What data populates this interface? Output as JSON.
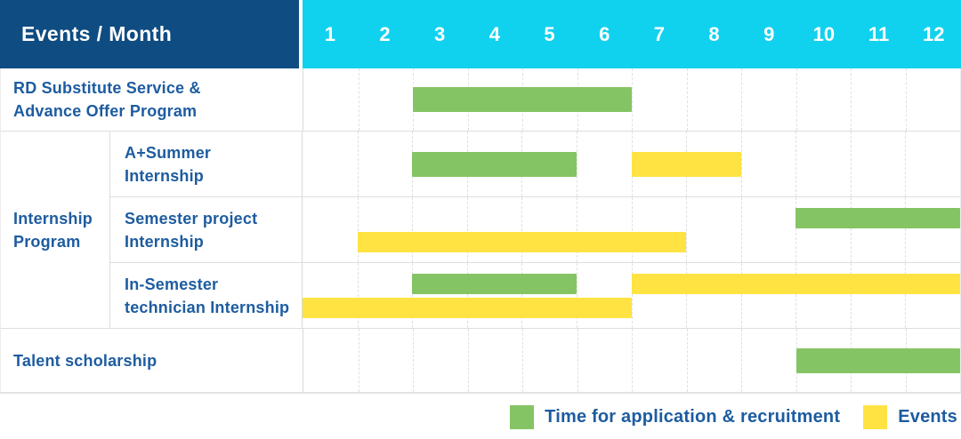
{
  "header": {
    "title": "Events / Month"
  },
  "months": [
    "1",
    "2",
    "3",
    "4",
    "5",
    "6",
    "7",
    "8",
    "9",
    "10",
    "11",
    "12"
  ],
  "colors": {
    "header_bg": "#0F4C81",
    "months_bg": "#11D2EE",
    "green": "#85C464",
    "yellow": "#FFE342",
    "label_text": "#1D5CA0"
  },
  "legend": {
    "items": [
      {
        "color": "green",
        "label": "Time for application & recruitment"
      },
      {
        "color": "yellow",
        "label": "Events"
      }
    ]
  },
  "group_label": "Internship\nProgram",
  "chart_data": {
    "type": "gantt",
    "x_unit": "month",
    "x_range": [
      1,
      12
    ],
    "legend": {
      "green": "Time for application & recruitment",
      "yellow": "Events"
    },
    "rows": [
      {
        "id": "rd-substitute",
        "label": "RD Substitute Service &\nAdvance Offer Program",
        "lanes": [
          [
            {
              "color": "green",
              "start_month": 3,
              "end_month": 6
            }
          ]
        ]
      },
      {
        "id": "a-plus-summer",
        "group": "Internship Program",
        "label": "A+Summer\nInternship",
        "lanes": [
          [
            {
              "color": "green",
              "start_month": 3,
              "end_month": 5
            },
            {
              "color": "yellow",
              "start_month": 7,
              "end_month": 8
            }
          ]
        ]
      },
      {
        "id": "semester-project",
        "group": "Internship Program",
        "label": "Semester project\nInternship",
        "lanes": [
          [
            {
              "color": "green",
              "start_month": 10,
              "end_month": 12
            }
          ],
          [
            {
              "color": "yellow",
              "start_month": 2,
              "end_month": 7
            }
          ]
        ]
      },
      {
        "id": "in-semester-technician",
        "group": "Internship Program",
        "label": "In-Semester\ntechnician Internship",
        "lanes": [
          [
            {
              "color": "green",
              "start_month": 3,
              "end_month": 5
            },
            {
              "color": "yellow",
              "start_month": 7,
              "end_month": 12
            }
          ],
          [
            {
              "color": "yellow",
              "start_month": 1,
              "end_month": 6
            }
          ]
        ]
      },
      {
        "id": "talent-scholarship",
        "label": "Talent scholarship",
        "lanes": [
          [
            {
              "color": "green",
              "start_month": 10,
              "end_month": 12
            }
          ]
        ]
      }
    ]
  }
}
